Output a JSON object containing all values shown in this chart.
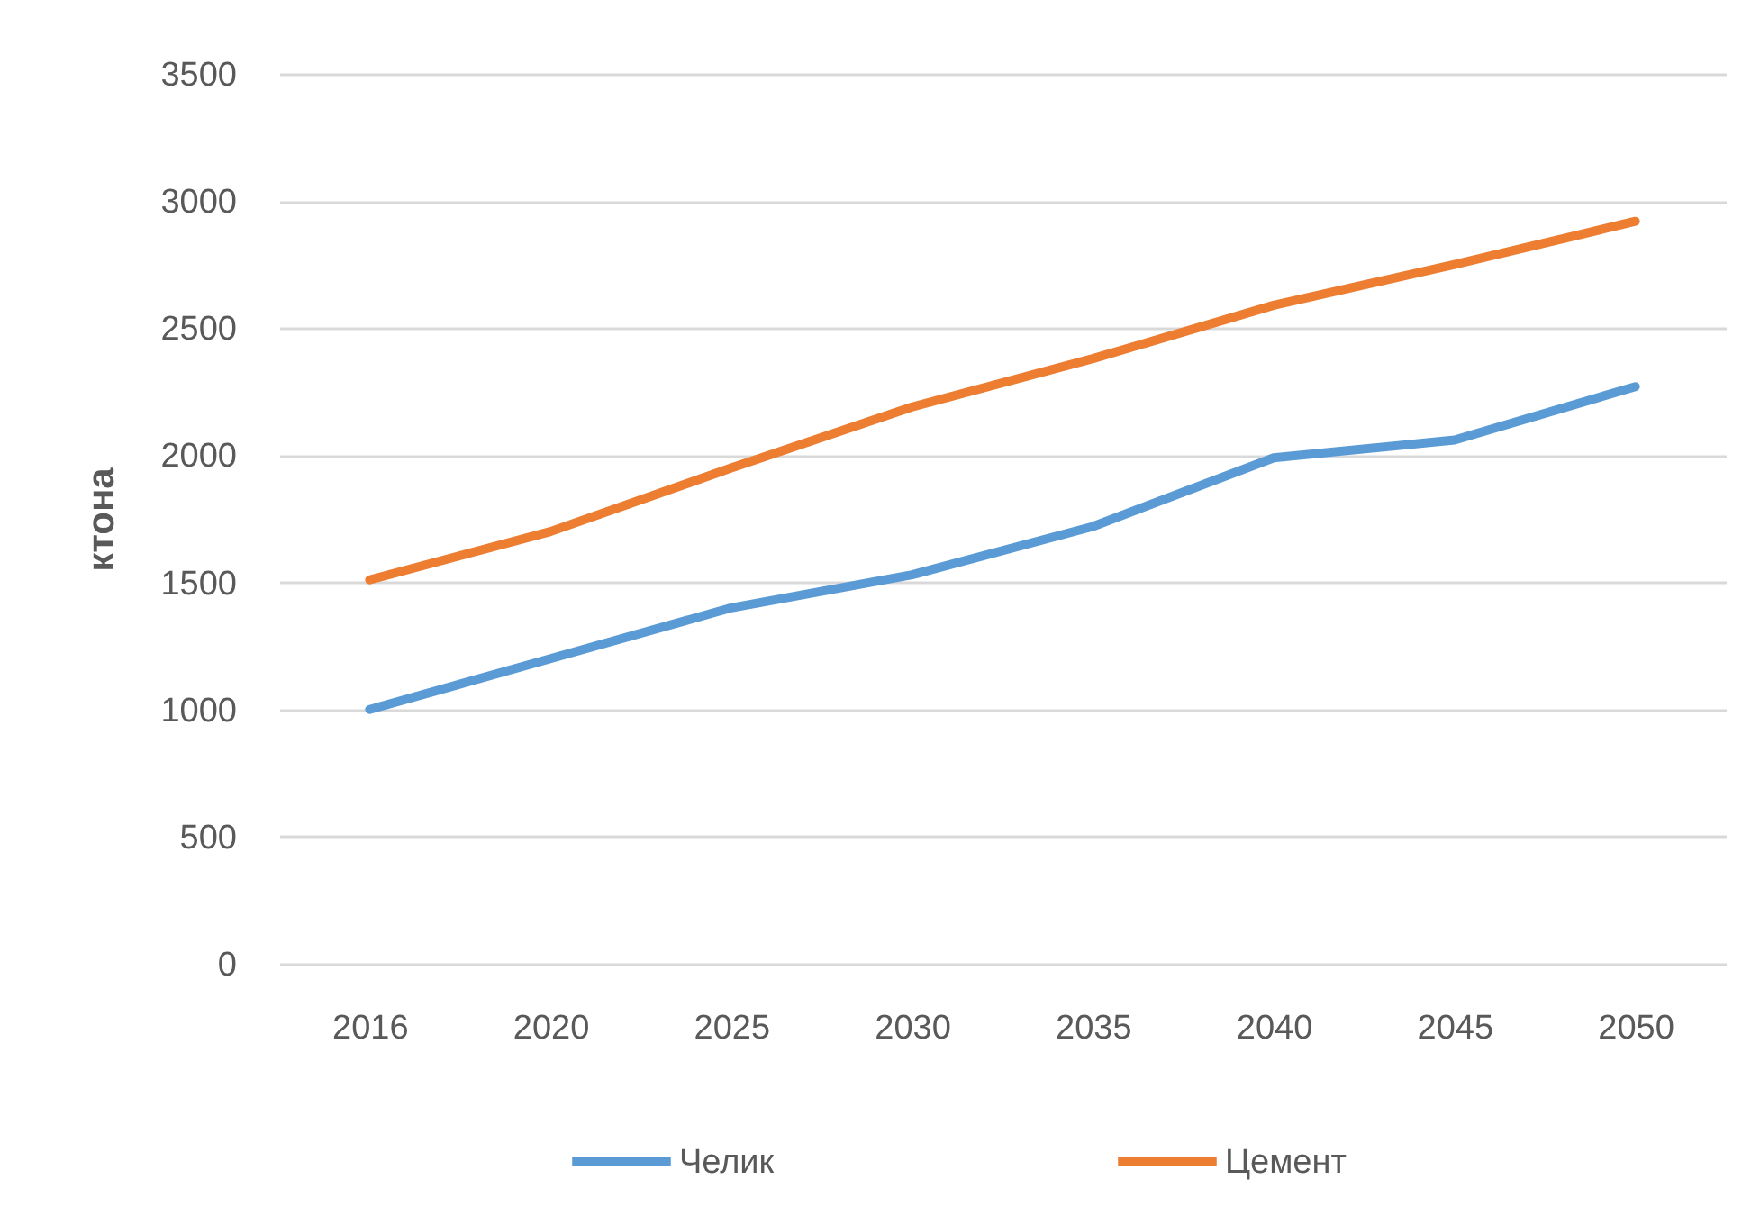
{
  "chart_data": {
    "type": "line",
    "ylabel": "ктона",
    "categories": [
      "2016",
      "2020",
      "2025",
      "2030",
      "2035",
      "2040",
      "2045",
      "2050"
    ],
    "series": [
      {
        "name": "Челик",
        "color": "#5b9bd5",
        "values": [
          1000,
          1200,
          1400,
          1530,
          1720,
          1990,
          2060,
          2270
        ]
      },
      {
        "name": "Цемент",
        "color": "#ed7d31",
        "values": [
          1510,
          1700,
          1950,
          2190,
          2380,
          2590,
          2750,
          2920
        ]
      }
    ],
    "ylim": [
      0,
      3500
    ],
    "yticks": [
      0,
      500,
      1000,
      1500,
      2000,
      2500,
      3000,
      3500
    ],
    "grid": "y",
    "legend": "bottom",
    "line_style": "solid"
  }
}
